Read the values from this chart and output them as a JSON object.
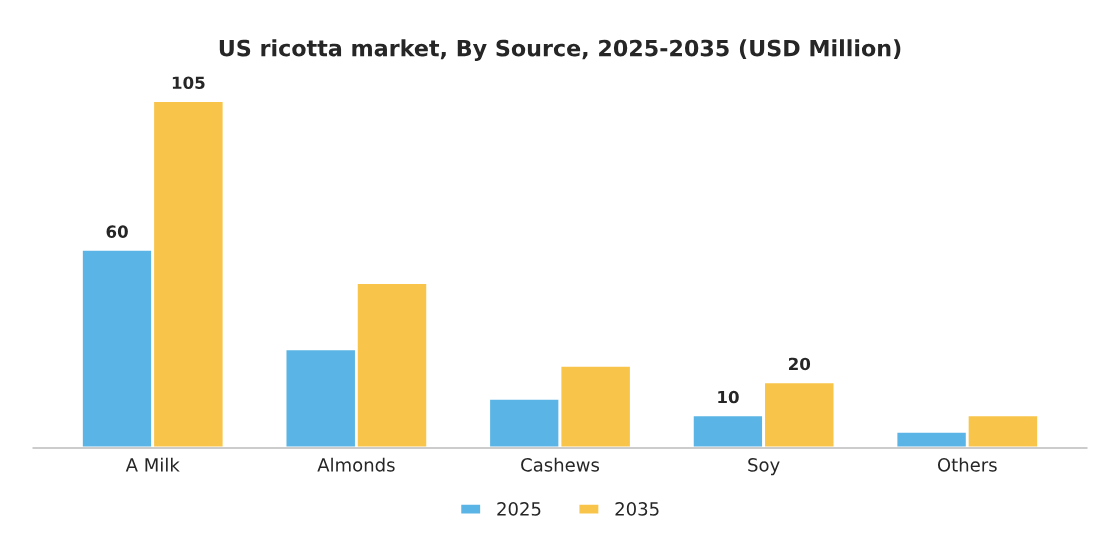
{
  "chart_data": {
    "type": "bar",
    "title": "US ricotta market, By Source, 2025-2035 (USD Million)",
    "categories": [
      "A Milk",
      "Almonds",
      "Cashews",
      "Soy",
      "Others"
    ],
    "series": [
      {
        "name": "2025",
        "color": "#5ab4e5",
        "values": [
          60,
          30,
          15,
          10,
          5
        ],
        "value_labels": [
          "60",
          null,
          null,
          "10",
          null
        ]
      },
      {
        "name": "2035",
        "color": "#f9c44a",
        "values": [
          105,
          50,
          25,
          20,
          10
        ],
        "value_labels": [
          "105",
          null,
          null,
          "20",
          null
        ]
      }
    ],
    "legend": "bottom",
    "grid": false
  }
}
